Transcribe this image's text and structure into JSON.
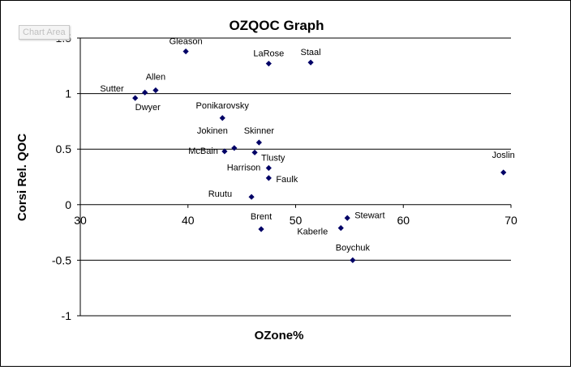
{
  "tooltip": "Chart Area",
  "chart_data": {
    "type": "scatter",
    "title": "OZQOC Graph",
    "xlabel": "OZone%",
    "ylabel": "Corsi Rel. QOC",
    "xlim": [
      30,
      70
    ],
    "ylim": [
      -1,
      1.5
    ],
    "xticks": [
      30,
      40,
      50,
      60,
      70
    ],
    "yticks": [
      -1,
      -0.5,
      0,
      0.5,
      1,
      1.5
    ],
    "ytick_labels": [
      "-1",
      "-0.5",
      "0",
      "0.5",
      "1",
      "1.5"
    ],
    "grid": "horizontal major gridlines",
    "legend": "none",
    "marker": "diamond",
    "marker_color": "#000066",
    "points": [
      {
        "label": "Gleason",
        "x": 39.8,
        "y": 1.38
      },
      {
        "label": "LaRose",
        "x": 47.5,
        "y": 1.27
      },
      {
        "label": "Staal",
        "x": 51.4,
        "y": 1.28
      },
      {
        "label": "Sutter",
        "x": 35.1,
        "y": 0.96
      },
      {
        "label": "Allen",
        "x": 37.0,
        "y": 1.03
      },
      {
        "label": "Dwyer",
        "x": 36.0,
        "y": 1.01
      },
      {
        "label": "Ponikarovsky",
        "x": 43.2,
        "y": 0.78
      },
      {
        "label": "Jokinen",
        "x": 44.3,
        "y": 0.51
      },
      {
        "label": "McBain",
        "x": 43.4,
        "y": 0.48
      },
      {
        "label": "Skinner",
        "x": 46.6,
        "y": 0.56
      },
      {
        "label": "Tlusty",
        "x": 46.2,
        "y": 0.47
      },
      {
        "label": "Harrison",
        "x": 47.5,
        "y": 0.33
      },
      {
        "label": "Faulk",
        "x": 47.5,
        "y": 0.24
      },
      {
        "label": "Ruutu",
        "x": 45.9,
        "y": 0.07
      },
      {
        "label": "Joslin",
        "x": 69.3,
        "y": 0.29
      },
      {
        "label": "Brent",
        "x": 46.8,
        "y": -0.22
      },
      {
        "label": "Stewart",
        "x": 54.8,
        "y": -0.12
      },
      {
        "label": "Kaberle",
        "x": 54.2,
        "y": -0.21
      },
      {
        "label": "Boychuk",
        "x": 55.3,
        "y": -0.5
      }
    ]
  }
}
